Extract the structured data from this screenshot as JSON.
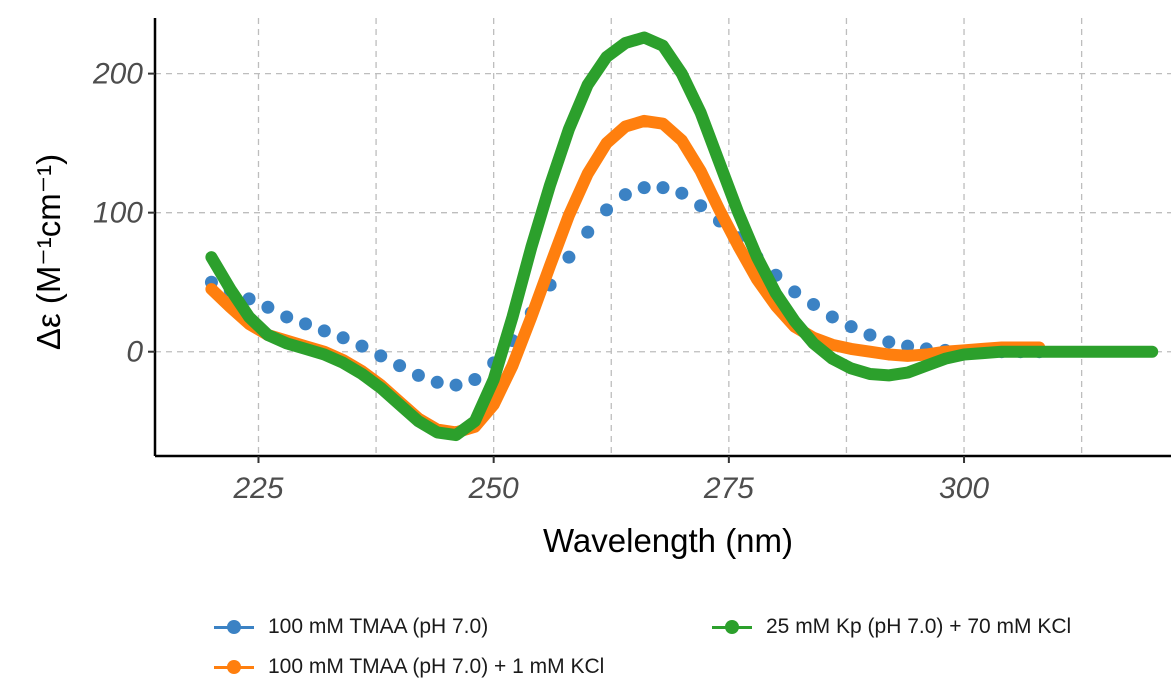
{
  "chart_data": {
    "type": "line",
    "xlabel": "Wavelength (nm)",
    "ylabel": "Δε (M⁻¹cm⁻¹)",
    "xlim": [
      214,
      322
    ],
    "ylim": [
      -75,
      240
    ],
    "x_ticks": [
      225,
      250,
      275,
      300
    ],
    "y_ticks": [
      0,
      100,
      200
    ],
    "grid": {
      "major_dashed": true,
      "minor_x": [
        237.5,
        262.5,
        287.5,
        312.5
      ]
    },
    "legend_position": "bottom",
    "series": [
      {
        "name": "100 mM TMAA (pH 7.0)",
        "color": "#3b82c4",
        "style": "dots",
        "x": [
          220,
          222,
          224,
          226,
          228,
          230,
          232,
          234,
          236,
          238,
          240,
          242,
          244,
          246,
          248,
          250,
          252,
          254,
          256,
          258,
          260,
          262,
          264,
          266,
          268,
          270,
          272,
          274,
          276,
          278,
          280,
          282,
          284,
          286,
          288,
          290,
          292,
          294,
          296,
          298,
          300,
          302,
          304,
          306,
          308
        ],
        "y": [
          50,
          44,
          38,
          32,
          25,
          20,
          15,
          10,
          4,
          -3,
          -10,
          -17,
          -22,
          -24,
          -20,
          -8,
          8,
          28,
          48,
          68,
          86,
          102,
          113,
          118,
          118,
          114,
          105,
          94,
          82,
          68,
          55,
          43,
          34,
          25,
          18,
          12,
          7,
          4,
          2,
          1,
          0,
          0,
          0,
          0,
          0
        ]
      },
      {
        "name": "100 mM TMAA (pH 7.0) + 1 mM KCl",
        "color": "#ff7f0e",
        "style": "thick-line",
        "x": [
          220,
          222,
          224,
          226,
          228,
          230,
          232,
          234,
          236,
          238,
          240,
          242,
          244,
          246,
          248,
          250,
          252,
          254,
          256,
          258,
          260,
          262,
          264,
          266,
          268,
          270,
          272,
          274,
          276,
          278,
          280,
          282,
          284,
          286,
          288,
          290,
          292,
          294,
          296,
          298,
          300,
          302,
          304,
          306,
          308
        ],
        "y": [
          45,
          32,
          20,
          12,
          8,
          4,
          0,
          -6,
          -14,
          -24,
          -36,
          -48,
          -56,
          -58,
          -54,
          -38,
          -10,
          25,
          62,
          98,
          128,
          150,
          162,
          166,
          164,
          152,
          130,
          102,
          76,
          52,
          33,
          18,
          10,
          5,
          2,
          0,
          -2,
          -3,
          -2,
          0,
          1,
          2,
          3,
          3,
          3
        ]
      },
      {
        "name": "25 mM Kp (pH 7.0) + 70 mM KCl",
        "color": "#2ca02c",
        "style": "thick-line",
        "x": [
          220,
          222,
          224,
          226,
          228,
          230,
          232,
          234,
          236,
          238,
          240,
          242,
          244,
          246,
          248,
          250,
          252,
          254,
          256,
          258,
          260,
          262,
          264,
          266,
          268,
          270,
          272,
          274,
          276,
          278,
          280,
          282,
          284,
          286,
          288,
          290,
          292,
          294,
          296,
          298,
          300,
          302,
          304,
          306,
          308,
          310,
          312,
          314,
          316,
          318,
          320
        ],
        "y": [
          68,
          45,
          25,
          12,
          6,
          2,
          -2,
          -8,
          -16,
          -26,
          -38,
          -50,
          -58,
          -60,
          -50,
          -20,
          25,
          75,
          120,
          160,
          192,
          212,
          222,
          226,
          220,
          200,
          172,
          136,
          100,
          68,
          42,
          22,
          6,
          -5,
          -12,
          -16,
          -17,
          -15,
          -10,
          -5,
          -2,
          -1,
          0,
          0,
          0,
          0,
          0,
          0,
          0,
          0,
          0
        ]
      }
    ]
  }
}
